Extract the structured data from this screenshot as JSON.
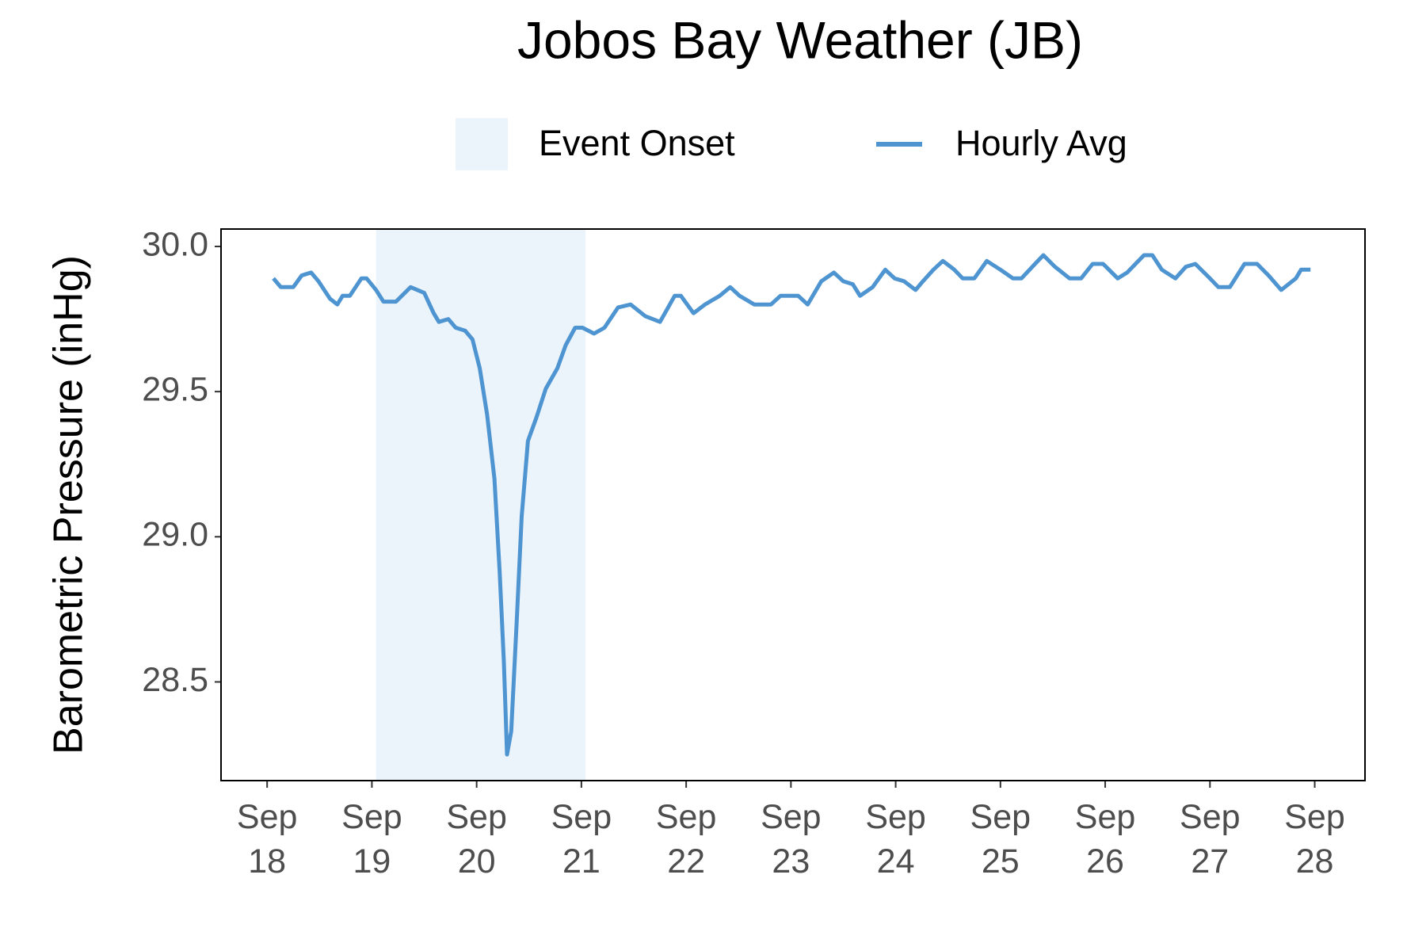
{
  "chart_data": {
    "type": "line",
    "title": "Jobos Bay Weather (JB)",
    "y_label": "Barometric Pressure (inHg)",
    "shaded_region": {
      "name": "Event Onset",
      "color": "#ebf3fb",
      "xmin": 19.04,
      "xmax": 21.04
    },
    "x": [
      18.06,
      18.13,
      18.25,
      18.33,
      18.42,
      18.49,
      18.6,
      18.67,
      18.72,
      18.79,
      18.9,
      18.95,
      19.04,
      19.11,
      19.23,
      19.37,
      19.5,
      19.59,
      19.64,
      19.73,
      19.8,
      19.89,
      19.96,
      20.03,
      20.1,
      20.17,
      20.22,
      20.26,
      20.29,
      20.33,
      20.38,
      20.43,
      20.49,
      20.57,
      20.66,
      20.77,
      20.85,
      20.94,
      21.01,
      21.12,
      21.22,
      21.35,
      21.47,
      21.61,
      21.75,
      21.89,
      21.95,
      22.07,
      22.18,
      22.32,
      22.42,
      22.51,
      22.65,
      22.81,
      22.9,
      23.07,
      23.16,
      23.29,
      23.41,
      23.5,
      23.59,
      23.66,
      23.78,
      23.9,
      23.99,
      24.08,
      24.19,
      24.26,
      24.36,
      24.45,
      24.56,
      24.64,
      24.75,
      24.87,
      25.0,
      25.12,
      25.2,
      25.33,
      25.41,
      25.52,
      25.66,
      25.77,
      25.88,
      25.98,
      26.12,
      26.21,
      26.37,
      26.45,
      26.54,
      26.67,
      26.77,
      26.86,
      27.0,
      27.08,
      27.19,
      27.33,
      27.45,
      27.56,
      27.68,
      27.82,
      27.87,
      27.96
    ],
    "series": [
      {
        "name": "Hourly Avg",
        "color": "#4d94d1",
        "values": [
          29.89,
          29.86,
          29.86,
          29.9,
          29.91,
          29.88,
          29.82,
          29.8,
          29.83,
          29.83,
          29.89,
          29.89,
          29.85,
          29.81,
          29.81,
          29.86,
          29.84,
          29.77,
          29.74,
          29.75,
          29.72,
          29.71,
          29.68,
          29.58,
          29.42,
          29.2,
          28.88,
          28.57,
          28.25,
          28.33,
          28.69,
          29.07,
          29.33,
          29.41,
          29.51,
          29.58,
          29.66,
          29.72,
          29.72,
          29.7,
          29.72,
          29.79,
          29.8,
          29.76,
          29.74,
          29.83,
          29.83,
          29.77,
          29.8,
          29.83,
          29.86,
          29.83,
          29.8,
          29.8,
          29.83,
          29.83,
          29.8,
          29.88,
          29.91,
          29.88,
          29.87,
          29.83,
          29.86,
          29.92,
          29.89,
          29.88,
          29.85,
          29.88,
          29.92,
          29.95,
          29.92,
          29.89,
          29.89,
          29.95,
          29.92,
          29.89,
          29.89,
          29.94,
          29.97,
          29.93,
          29.89,
          29.89,
          29.94,
          29.94,
          29.89,
          29.91,
          29.97,
          29.97,
          29.92,
          29.89,
          29.93,
          29.94,
          29.89,
          29.86,
          29.86,
          29.94,
          29.94,
          29.9,
          29.85,
          29.89,
          29.92,
          29.92
        ]
      }
    ],
    "xlim": [
      17.56,
      28.48
    ],
    "ylim": [
      28.16,
      30.06
    ],
    "xticks": [
      {
        "value": 18,
        "label": "Sep\n18"
      },
      {
        "value": 19,
        "label": "Sep\n19"
      },
      {
        "value": 20,
        "label": "Sep\n20"
      },
      {
        "value": 21,
        "label": "Sep\n21"
      },
      {
        "value": 22,
        "label": "Sep\n22"
      },
      {
        "value": 23,
        "label": "Sep\n23"
      },
      {
        "value": 24,
        "label": "Sep\n24"
      },
      {
        "value": 25,
        "label": "Sep\n25"
      },
      {
        "value": 26,
        "label": "Sep\n26"
      },
      {
        "value": 27,
        "label": "Sep\n27"
      },
      {
        "value": 28,
        "label": "Sep\n28"
      }
    ],
    "yticks": [
      28.5,
      {
        "value": 29,
        "label": "29.0"
      },
      29.5,
      {
        "value": 30,
        "label": "30.0"
      }
    ],
    "grid": false
  }
}
